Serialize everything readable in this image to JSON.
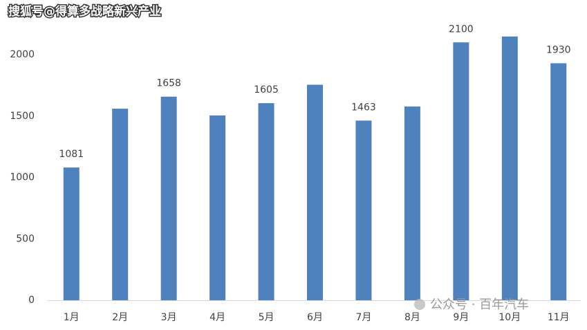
{
  "chart_data": {
    "type": "bar",
    "watermarks": [
      "搜狐号@得算多战略新兴产业",
      "公众号 · 百年汽车"
    ],
    "categories": [
      "1月",
      "2月",
      "3月",
      "4月",
      "5月",
      "6月",
      "7月",
      "8月",
      "9月",
      "10月",
      "11月"
    ],
    "values": [
      1081,
      1560,
      1658,
      1505,
      1605,
      1755,
      1463,
      1578,
      2100,
      2148,
      1930
    ],
    "value_labels": [
      "1081",
      null,
      "1658",
      null,
      "1605",
      null,
      "1463",
      null,
      "2100",
      null,
      "1930"
    ],
    "color": "#4f81bd",
    "ylim": [
      0,
      2200
    ],
    "yticks": [
      0,
      500,
      1000,
      1500,
      2000
    ],
    "grid": false
  }
}
